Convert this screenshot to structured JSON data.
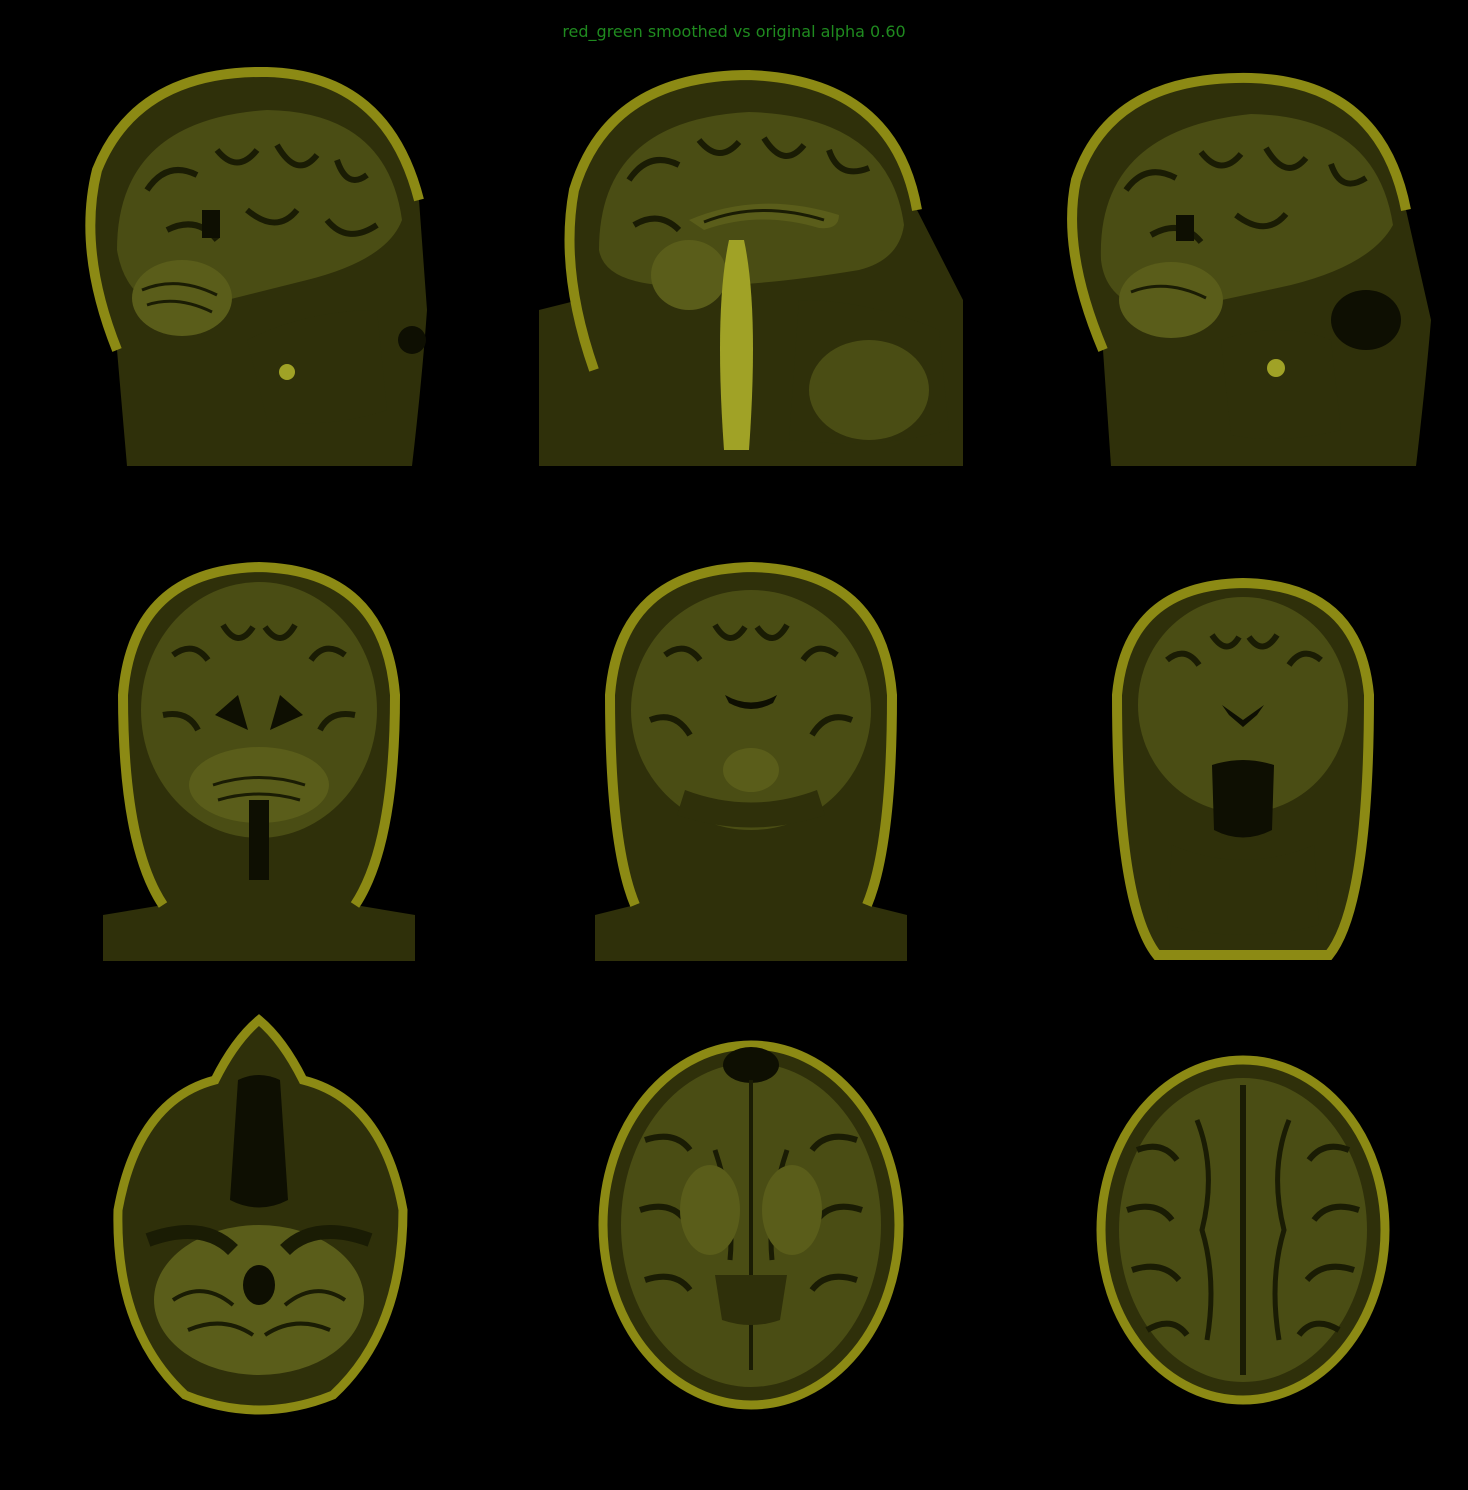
{
  "title": "red_green smoothed vs original alpha 0.60",
  "colors": {
    "background": "#000000",
    "title": "#1f8a1f",
    "skull_rim": "#8c8a14",
    "soft_tissue": "#2f300a",
    "brain": "#4a4d14",
    "white_matter": "#5a5d1a",
    "sulci": "#1a1c04",
    "csf_dark": "#0e0f02",
    "bright_structure": "#a0a226"
  },
  "panels": [
    {
      "view": "sagittal",
      "icon": "sagittal-brain-slice"
    },
    {
      "view": "sagittal",
      "icon": "sagittal-brain-slice"
    },
    {
      "view": "sagittal",
      "icon": "sagittal-brain-slice"
    },
    {
      "view": "coronal",
      "icon": "coronal-brain-slice"
    },
    {
      "view": "coronal",
      "icon": "coronal-brain-slice"
    },
    {
      "view": "coronal",
      "icon": "coronal-brain-slice"
    },
    {
      "view": "axial",
      "icon": "axial-brain-slice"
    },
    {
      "view": "axial",
      "icon": "axial-brain-slice"
    },
    {
      "view": "axial",
      "icon": "axial-brain-slice"
    }
  ]
}
